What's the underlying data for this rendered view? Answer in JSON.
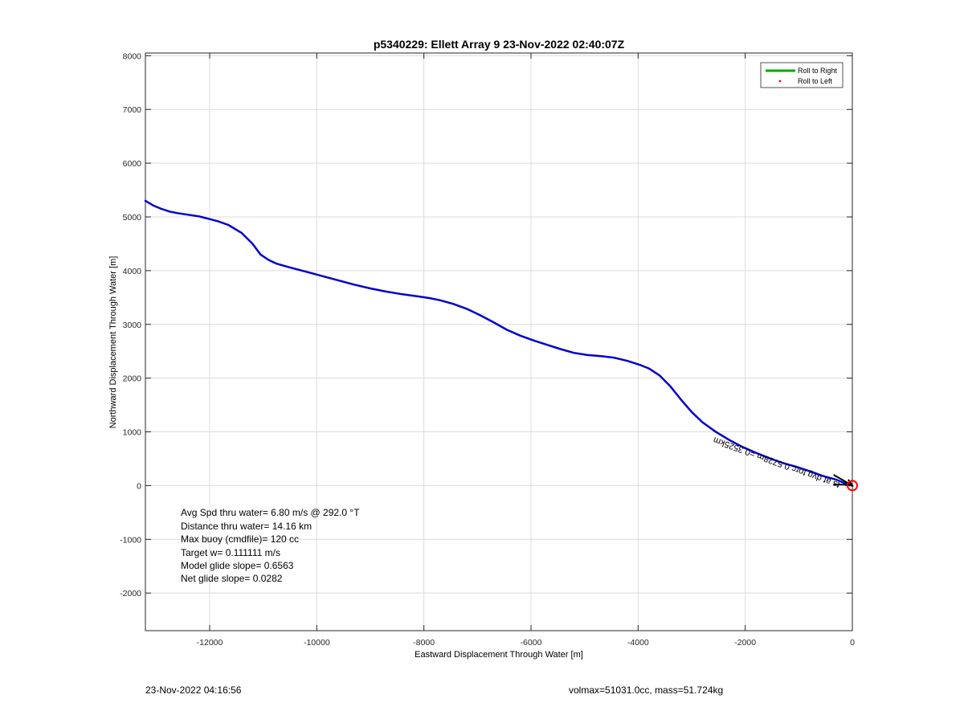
{
  "chart_data": {
    "type": "line",
    "title": "p5340229: Ellett Array 9 23-Nov-2022 02:40:07Z",
    "xlabel": "Eastward Displacement Through Water [m]",
    "ylabel": "Northward Displacement Through Water [m]",
    "xlim": [
      -13200,
      0
    ],
    "ylim": [
      -2700,
      8050
    ],
    "xticks": [
      -12000,
      -10000,
      -8000,
      -6000,
      -4000,
      -2000,
      0
    ],
    "yticks": [
      -2000,
      -1000,
      0,
      1000,
      2000,
      3000,
      4000,
      5000,
      6000,
      7000,
      8000
    ],
    "grid": true,
    "legend_position": "top-right",
    "legend": [
      {
        "label": "Roll to Right",
        "color": "#00aa00",
        "marker": "line"
      },
      {
        "label": "Roll to Left",
        "color": "#ff0000",
        "marker": "dot"
      }
    ],
    "series": [
      {
        "color": "#0000cc",
        "x": [
          -13200,
          -13050,
          -12900,
          -12750,
          -12600,
          -12400,
          -12200,
          -12000,
          -11850,
          -11650,
          -11400,
          -11200,
          -11050,
          -10900,
          -10750,
          -10500,
          -10200,
          -9900,
          -9600,
          -9300,
          -9000,
          -8700,
          -8400,
          -8100,
          -7900,
          -7700,
          -7450,
          -7200,
          -6950,
          -6700,
          -6450,
          -6200,
          -5950,
          -5700,
          -5450,
          -5200,
          -4950,
          -4700,
          -4450,
          -4200,
          -3950,
          -3800,
          -3600,
          -3400,
          -3200,
          -3000,
          -2800,
          -2550,
          -2300,
          -2050,
          -1800,
          -1550,
          -1300,
          -1050,
          -800,
          -550,
          -300,
          -150,
          0
        ],
        "y": [
          5300,
          5210,
          5150,
          5100,
          5070,
          5040,
          5010,
          4960,
          4920,
          4850,
          4700,
          4500,
          4300,
          4200,
          4130,
          4060,
          3980,
          3900,
          3820,
          3740,
          3670,
          3610,
          3560,
          3520,
          3490,
          3450,
          3380,
          3290,
          3170,
          3040,
          2900,
          2790,
          2700,
          2620,
          2540,
          2470,
          2430,
          2410,
          2380,
          2320,
          2240,
          2180,
          2050,
          1850,
          1600,
          1370,
          1180,
          1000,
          850,
          720,
          610,
          510,
          420,
          350,
          270,
          180,
          110,
          50,
          0
        ]
      }
    ],
    "annotation_text": "Avg Spd thru water=  6.80 m/s @ 292.0 °T\nDistance thru water= 14.16 km\nMax buoy (cmdfile)= 120 cc\nTarget w= 0.111111 m/s\nModel glide slope= 0.6563\nNet glide slope= 0.0282",
    "annotation_lines": [
      "Avg Spd thru water=  6.80 m/s @ 292.0 °T",
      "Distance thru water= 14.16 km",
      "Max buoy (cmdfile)= 120 cc",
      "Target w= 0.111111 m/s",
      "Model glide slope= 0.6563",
      "Net glide slope= 0.0282"
    ],
    "current_label": "Depth-average current 0.0578ms at 0.3525 km",
    "current_label_visible": "ts at dvg torc 0.5728m =0.3525km",
    "current_vector": {
      "x": [
        -350,
        0
      ],
      "y": [
        200,
        0
      ]
    },
    "end_marker": {
      "x": 0,
      "y": 0,
      "color": "#ff0000"
    }
  },
  "footer": {
    "timestamp": "23-Nov-2022 04:16:56",
    "info": "volmax=51031.0cc, mass=51.724kg"
  }
}
